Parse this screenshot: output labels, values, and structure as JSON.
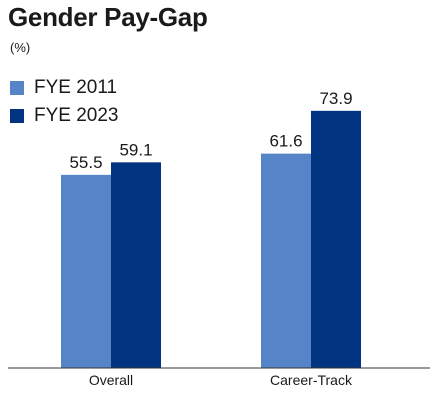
{
  "title": "Gender Pay-Gap",
  "unit": "(%)",
  "colors": {
    "series_1": "#5585c8",
    "series_2": "#003380",
    "axis": "#333333"
  },
  "chart_data": {
    "type": "bar",
    "title": "Gender Pay-Gap",
    "ylabel": "(%)",
    "categories": [
      "Overall",
      "Career-Track"
    ],
    "series": [
      {
        "name": "FYE 2011",
        "values": [
          55.5,
          61.6
        ]
      },
      {
        "name": "FYE 2023",
        "values": [
          59.1,
          73.9
        ]
      }
    ],
    "ylim": [
      0,
      100
    ],
    "legend": "top-left",
    "grid": false
  }
}
